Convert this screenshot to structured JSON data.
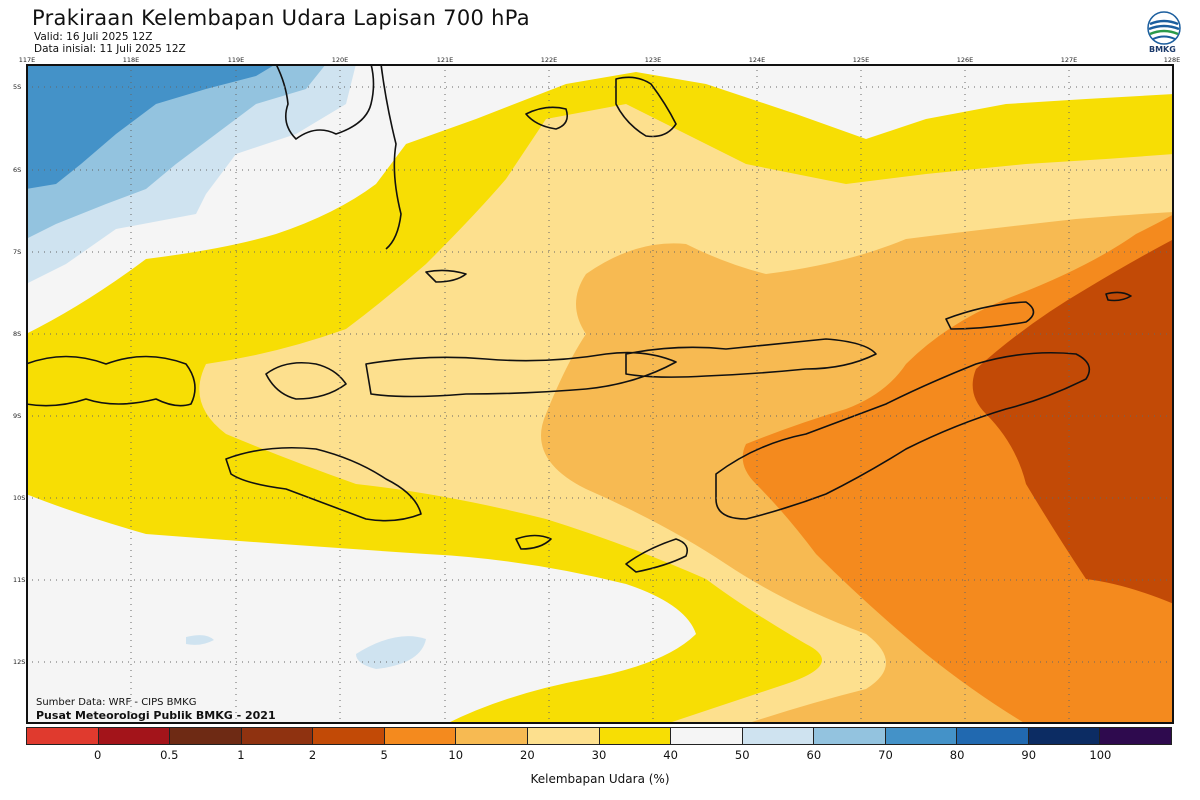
{
  "header": {
    "title": "Prakiraan Kelembapan Udara Lapisan 700 hPa",
    "valid": "Valid: 16 Juli 2025 12Z",
    "initial": "Data inisial: 11 Juli 2025 12Z",
    "logo_text": "BMKG"
  },
  "axes": {
    "lon_ticks": [
      "117E",
      "118E",
      "119E",
      "120E",
      "121E",
      "122E",
      "123E",
      "124E",
      "125E",
      "126E",
      "127E",
      "128E"
    ],
    "lat_ticks": [
      "5S",
      "6S",
      "7S",
      "8S",
      "9S",
      "10S",
      "11S",
      "12S"
    ]
  },
  "credits": {
    "source": "Sumber Data: WRF - CIPS BMKG",
    "center": "Pusat Meteorologi Publik BMKG - 2021"
  },
  "legend": {
    "title": "Kelembapan Udara (%)",
    "labels": [
      "0",
      "0.5",
      "1",
      "2",
      "5",
      "10",
      "20",
      "30",
      "40",
      "50",
      "60",
      "70",
      "80",
      "90",
      "100"
    ],
    "colors": [
      "#e03a2e",
      "#a3141a",
      "#6e2a14",
      "#8f3210",
      "#c24a06",
      "#f48a1e",
      "#f7ba52",
      "#fde08e",
      "#f7de04",
      "#f5f5f5",
      "#cfe3f0",
      "#93c3df",
      "#4492c8",
      "#2169b0",
      "#0c2c63",
      "#2e0a4e"
    ]
  },
  "map_colors": {
    "sea_bg": "#f5f5f5",
    "h60": "#cfe3f0",
    "h70": "#93c3df",
    "h80": "#4492c8",
    "h40": "#f7de04",
    "h30": "#fde08e",
    "h20": "#f7ba52",
    "h10": "#f48a1e",
    "h5": "#c24a06"
  }
}
